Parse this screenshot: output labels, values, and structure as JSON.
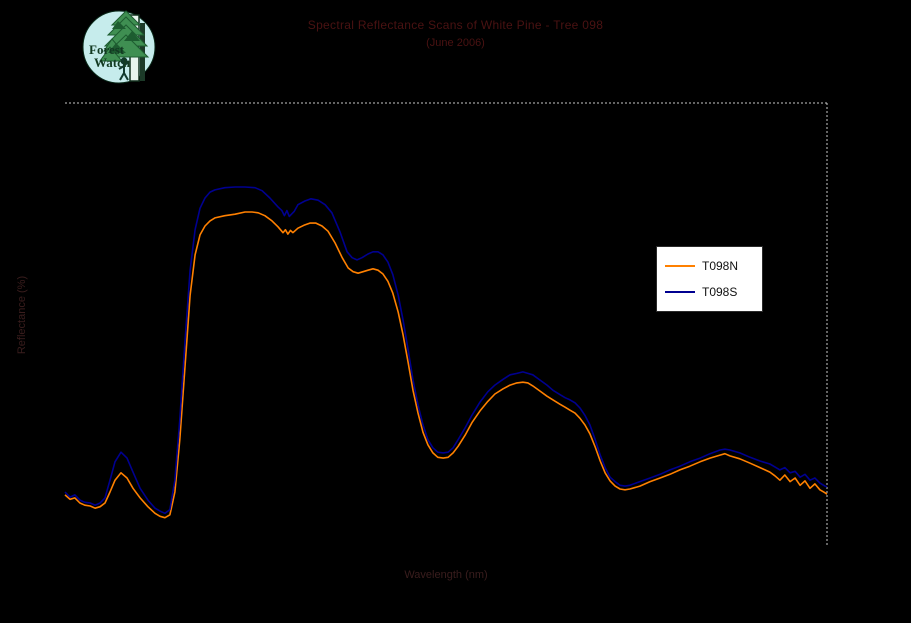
{
  "page": {
    "background_color": "#000000"
  },
  "logo": {
    "text_line1": "Forest",
    "text_line2": "Watch",
    "circle_color": "#c6ecec",
    "text_color": "#123a22",
    "foliage_color": "#3f8f52",
    "foliage_dark_color": "#1d5c30"
  },
  "title": {
    "line1": "Spectral Reflectance Scans of White Pine - Tree 098",
    "line2": "(June 2006)",
    "color": "#4a1212"
  },
  "axes": {
    "x_label": "Wavelength (nm)",
    "y_label": "Reflectance (%)",
    "label_color": "#3a1d1d",
    "border_color": "#c8c8c8"
  },
  "legend": {
    "items": [
      {
        "label": "T098N",
        "color": "#ff8000"
      },
      {
        "label": "T098S",
        "color": "#000090"
      }
    ]
  },
  "chart_data": {
    "type": "line",
    "title": "Spectral Reflectance Scans of White Pine - Tree 098 (June 2006)",
    "xlabel": "Wavelength (nm)",
    "ylabel": "Reflectance (%)",
    "xlim": [
      350,
      2500
    ],
    "ylim": [
      0,
      60
    ],
    "grid": false,
    "legend_position": "right-center",
    "plot_border": "dotted gray, top and right edges only",
    "background": "black",
    "series": [
      {
        "name": "T098N",
        "color": "#ff8000",
        "points": [
          [
            350,
            6.8
          ],
          [
            364,
            6.2
          ],
          [
            378,
            6.4
          ],
          [
            392,
            5.7
          ],
          [
            406,
            5.4
          ],
          [
            421,
            5.3
          ],
          [
            435,
            5.0
          ],
          [
            449,
            5.2
          ],
          [
            463,
            5.7
          ],
          [
            477,
            7.2
          ],
          [
            491,
            8.8
          ],
          [
            508,
            9.8
          ],
          [
            525,
            9.1
          ],
          [
            542,
            7.7
          ],
          [
            562,
            6.4
          ],
          [
            584,
            5.2
          ],
          [
            604,
            4.3
          ],
          [
            618,
            3.9
          ],
          [
            632,
            3.7
          ],
          [
            646,
            4.1
          ],
          [
            660,
            7.2
          ],
          [
            674,
            14.3
          ],
          [
            689,
            24.4
          ],
          [
            703,
            33.9
          ],
          [
            717,
            39.4
          ],
          [
            731,
            42.1
          ],
          [
            745,
            43.3
          ],
          [
            759,
            44.0
          ],
          [
            773,
            44.4
          ],
          [
            801,
            44.7
          ],
          [
            830,
            44.9
          ],
          [
            858,
            45.2
          ],
          [
            878,
            45.2
          ],
          [
            895,
            45.1
          ],
          [
            914,
            44.7
          ],
          [
            934,
            44.0
          ],
          [
            951,
            43.2
          ],
          [
            965,
            42.4
          ],
          [
            972,
            42.8
          ],
          [
            979,
            42.2
          ],
          [
            986,
            42.7
          ],
          [
            993,
            42.4
          ],
          [
            1007,
            43.0
          ],
          [
            1024,
            43.4
          ],
          [
            1041,
            43.7
          ],
          [
            1058,
            43.7
          ],
          [
            1075,
            43.3
          ],
          [
            1092,
            42.6
          ],
          [
            1112,
            41.0
          ],
          [
            1132,
            39.0
          ],
          [
            1149,
            37.6
          ],
          [
            1163,
            37.1
          ],
          [
            1177,
            36.9
          ],
          [
            1191,
            37.1
          ],
          [
            1205,
            37.3
          ],
          [
            1219,
            37.5
          ],
          [
            1233,
            37.3
          ],
          [
            1247,
            36.8
          ],
          [
            1261,
            35.8
          ],
          [
            1275,
            34.2
          ],
          [
            1290,
            31.6
          ],
          [
            1304,
            28.5
          ],
          [
            1318,
            24.8
          ],
          [
            1332,
            21.0
          ],
          [
            1346,
            17.9
          ],
          [
            1360,
            15.3
          ],
          [
            1374,
            13.6
          ],
          [
            1388,
            12.5
          ],
          [
            1402,
            11.9
          ],
          [
            1417,
            11.8
          ],
          [
            1431,
            11.9
          ],
          [
            1445,
            12.5
          ],
          [
            1459,
            13.4
          ],
          [
            1479,
            14.9
          ],
          [
            1498,
            16.6
          ],
          [
            1521,
            18.2
          ],
          [
            1543,
            19.5
          ],
          [
            1563,
            20.5
          ],
          [
            1586,
            21.2
          ],
          [
            1606,
            21.7
          ],
          [
            1625,
            22.0
          ],
          [
            1642,
            22.1
          ],
          [
            1656,
            22.0
          ],
          [
            1670,
            21.6
          ],
          [
            1690,
            20.9
          ],
          [
            1710,
            20.2
          ],
          [
            1727,
            19.7
          ],
          [
            1747,
            19.1
          ],
          [
            1761,
            18.7
          ],
          [
            1775,
            18.3
          ],
          [
            1789,
            17.9
          ],
          [
            1803,
            17.2
          ],
          [
            1817,
            16.3
          ],
          [
            1831,
            15.1
          ],
          [
            1846,
            13.3
          ],
          [
            1860,
            11.4
          ],
          [
            1874,
            9.8
          ],
          [
            1888,
            8.7
          ],
          [
            1902,
            8.0
          ],
          [
            1916,
            7.6
          ],
          [
            1930,
            7.5
          ],
          [
            1944,
            7.6
          ],
          [
            1972,
            8.0
          ],
          [
            2001,
            8.6
          ],
          [
            2029,
            9.1
          ],
          [
            2057,
            9.6
          ],
          [
            2085,
            10.2
          ],
          [
            2113,
            10.7
          ],
          [
            2142,
            11.3
          ],
          [
            2170,
            11.8
          ],
          [
            2198,
            12.2
          ],
          [
            2212,
            12.4
          ],
          [
            2226,
            12.1
          ],
          [
            2254,
            11.7
          ],
          [
            2283,
            11.1
          ],
          [
            2311,
            10.5
          ],
          [
            2339,
            9.9
          ],
          [
            2353,
            9.4
          ],
          [
            2367,
            8.8
          ],
          [
            2381,
            9.5
          ],
          [
            2396,
            8.6
          ],
          [
            2410,
            9.1
          ],
          [
            2424,
            8.1
          ],
          [
            2438,
            8.7
          ],
          [
            2452,
            7.7
          ],
          [
            2466,
            8.3
          ],
          [
            2480,
            7.5
          ],
          [
            2494,
            7.1
          ],
          [
            2500,
            6.9
          ]
        ]
      },
      {
        "name": "T098S",
        "color": "#000090",
        "points": [
          [
            350,
            7.2
          ],
          [
            364,
            6.5
          ],
          [
            378,
            6.8
          ],
          [
            392,
            6.1
          ],
          [
            406,
            5.8
          ],
          [
            421,
            5.7
          ],
          [
            435,
            5.4
          ],
          [
            449,
            5.7
          ],
          [
            463,
            6.4
          ],
          [
            477,
            8.8
          ],
          [
            491,
            11.3
          ],
          [
            508,
            12.6
          ],
          [
            525,
            11.8
          ],
          [
            542,
            9.9
          ],
          [
            562,
            7.7
          ],
          [
            584,
            6.1
          ],
          [
            604,
            5.0
          ],
          [
            618,
            4.6
          ],
          [
            632,
            4.3
          ],
          [
            646,
            4.8
          ],
          [
            660,
            8.8
          ],
          [
            674,
            17.0
          ],
          [
            689,
            27.8
          ],
          [
            703,
            37.3
          ],
          [
            717,
            42.8
          ],
          [
            731,
            45.7
          ],
          [
            745,
            47.1
          ],
          [
            759,
            47.9
          ],
          [
            773,
            48.2
          ],
          [
            801,
            48.5
          ],
          [
            830,
            48.6
          ],
          [
            858,
            48.6
          ],
          [
            886,
            48.5
          ],
          [
            906,
            48.1
          ],
          [
            928,
            47.1
          ],
          [
            951,
            45.9
          ],
          [
            962,
            45.4
          ],
          [
            969,
            44.7
          ],
          [
            976,
            45.4
          ],
          [
            983,
            44.6
          ],
          [
            997,
            45.3
          ],
          [
            1007,
            46.2
          ],
          [
            1027,
            46.7
          ],
          [
            1044,
            47.0
          ],
          [
            1064,
            46.8
          ],
          [
            1084,
            46.2
          ],
          [
            1103,
            45.1
          ],
          [
            1126,
            42.5
          ],
          [
            1146,
            39.8
          ],
          [
            1160,
            39.0
          ],
          [
            1174,
            38.7
          ],
          [
            1188,
            39.0
          ],
          [
            1205,
            39.5
          ],
          [
            1219,
            39.8
          ],
          [
            1233,
            39.8
          ],
          [
            1247,
            39.4
          ],
          [
            1261,
            38.4
          ],
          [
            1275,
            36.7
          ],
          [
            1290,
            33.9
          ],
          [
            1304,
            30.5
          ],
          [
            1318,
            26.5
          ],
          [
            1332,
            22.4
          ],
          [
            1346,
            19.0
          ],
          [
            1360,
            16.3
          ],
          [
            1374,
            14.3
          ],
          [
            1388,
            13.2
          ],
          [
            1402,
            12.6
          ],
          [
            1417,
            12.5
          ],
          [
            1431,
            12.6
          ],
          [
            1445,
            13.2
          ],
          [
            1459,
            14.3
          ],
          [
            1479,
            15.9
          ],
          [
            1498,
            17.6
          ],
          [
            1521,
            19.4
          ],
          [
            1543,
            20.8
          ],
          [
            1563,
            21.7
          ],
          [
            1586,
            22.5
          ],
          [
            1606,
            23.1
          ],
          [
            1625,
            23.3
          ],
          [
            1642,
            23.5
          ],
          [
            1656,
            23.3
          ],
          [
            1670,
            23.1
          ],
          [
            1690,
            22.4
          ],
          [
            1710,
            21.7
          ],
          [
            1727,
            21.0
          ],
          [
            1747,
            20.4
          ],
          [
            1761,
            20.0
          ],
          [
            1775,
            19.7
          ],
          [
            1789,
            19.3
          ],
          [
            1803,
            18.6
          ],
          [
            1817,
            17.6
          ],
          [
            1831,
            16.3
          ],
          [
            1846,
            14.3
          ],
          [
            1860,
            12.2
          ],
          [
            1874,
            10.5
          ],
          [
            1888,
            9.2
          ],
          [
            1902,
            8.6
          ],
          [
            1916,
            8.1
          ],
          [
            1930,
            8.0
          ],
          [
            1944,
            8.1
          ],
          [
            1972,
            8.6
          ],
          [
            2001,
            9.1
          ],
          [
            2029,
            9.6
          ],
          [
            2057,
            10.2
          ],
          [
            2085,
            10.7
          ],
          [
            2113,
            11.3
          ],
          [
            2142,
            11.8
          ],
          [
            2170,
            12.4
          ],
          [
            2198,
            12.9
          ],
          [
            2212,
            13.0
          ],
          [
            2226,
            12.9
          ],
          [
            2254,
            12.5
          ],
          [
            2283,
            11.9
          ],
          [
            2311,
            11.4
          ],
          [
            2339,
            11.0
          ],
          [
            2353,
            10.6
          ],
          [
            2367,
            10.2
          ],
          [
            2381,
            10.5
          ],
          [
            2396,
            9.8
          ],
          [
            2410,
            10.0
          ],
          [
            2424,
            9.2
          ],
          [
            2438,
            9.6
          ],
          [
            2452,
            8.8
          ],
          [
            2466,
            9.1
          ],
          [
            2480,
            8.4
          ],
          [
            2494,
            8.0
          ],
          [
            2500,
            7.9
          ]
        ]
      }
    ]
  }
}
